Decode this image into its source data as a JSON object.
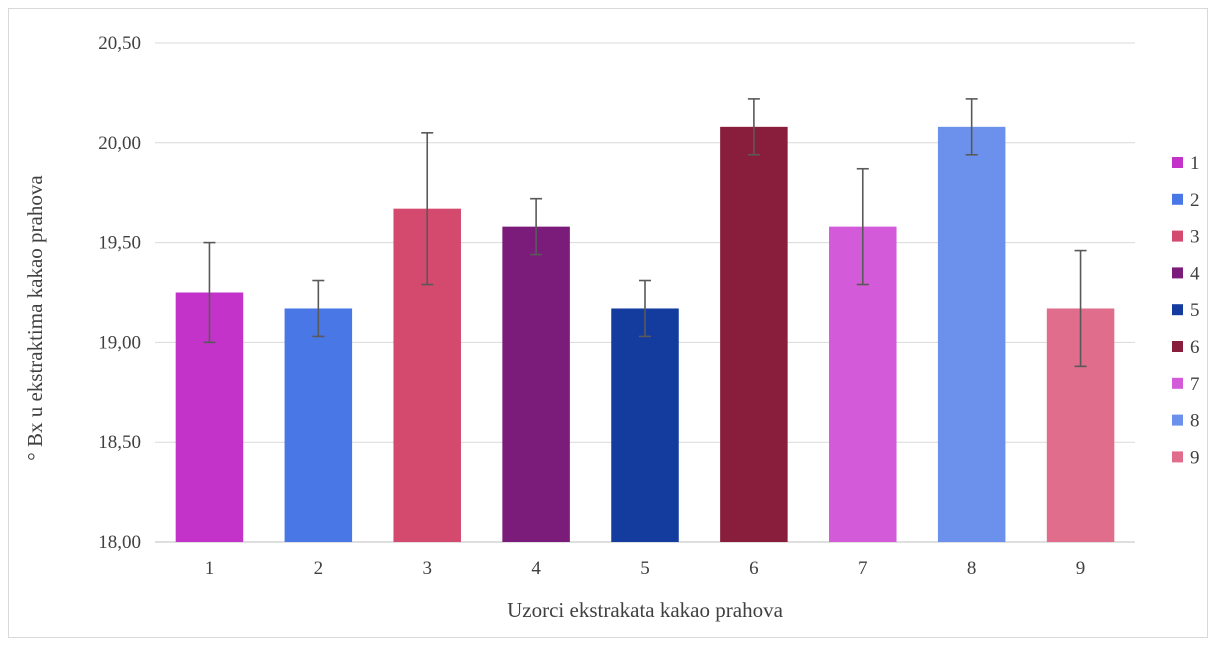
{
  "chart_data": {
    "type": "bar",
    "title": "",
    "xlabel": "Uzorci ekstrakata kakao prahova",
    "ylabel": "° Bx u ekstraktima kakao prahova",
    "ylim": [
      18.0,
      20.5
    ],
    "yticks": [
      "18,00",
      "18,50",
      "19,00",
      "19,50",
      "20,00",
      "20,50"
    ],
    "ytick_values": [
      18.0,
      18.5,
      19.0,
      19.5,
      20.0,
      20.5
    ],
    "categories": [
      "1",
      "2",
      "3",
      "4",
      "5",
      "6",
      "7",
      "8",
      "9"
    ],
    "values": [
      19.25,
      19.17,
      19.67,
      19.58,
      19.17,
      20.08,
      19.58,
      20.08,
      19.17
    ],
    "errors": [
      0.25,
      0.14,
      0.38,
      0.14,
      0.14,
      0.14,
      0.29,
      0.14,
      0.29
    ],
    "colors": [
      "#c332c9",
      "#4a77e6",
      "#d44a6e",
      "#7b1c7a",
      "#143c9e",
      "#891e3c",
      "#d35ad9",
      "#6b91ec",
      "#df6d8b"
    ],
    "grid": true,
    "legend": {
      "position": "right",
      "entries": [
        "1",
        "2",
        "3",
        "4",
        "5",
        "6",
        "7",
        "8",
        "9"
      ]
    }
  }
}
